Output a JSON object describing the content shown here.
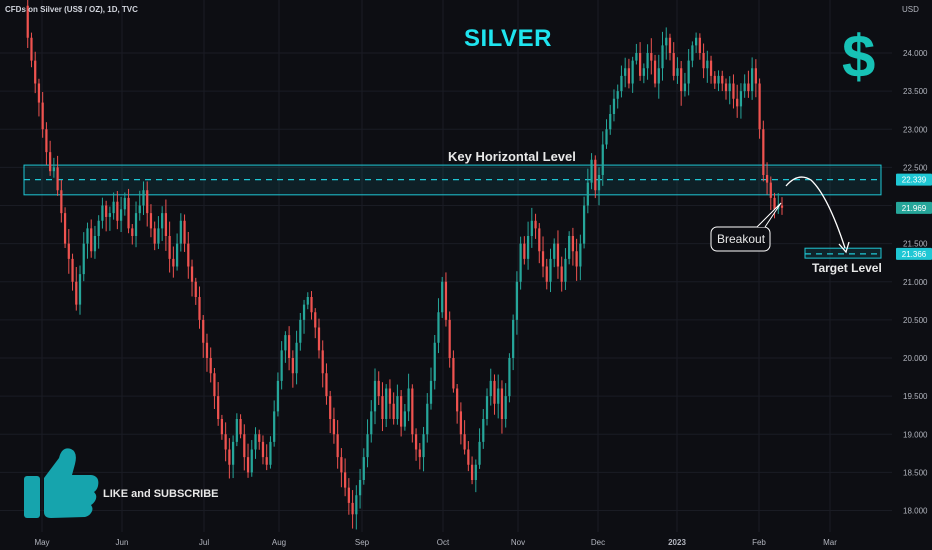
{
  "header": {
    "symbol_label": "CFDs on Silver (US$ / OZ), 1D, TVC"
  },
  "chart_data": {
    "type": "candlestick",
    "title": "SILVER",
    "y_axis": {
      "unit": "USD",
      "ticks": [
        "24.000",
        "23.500",
        "23.000",
        "22.500",
        "22.000",
        "21.500",
        "21.000",
        "20.500",
        "20.000",
        "19.500",
        "19.000",
        "18.500",
        "18.000"
      ],
      "range": [
        17.9,
        24.65
      ]
    },
    "x_axis": {
      "ticks": [
        "May",
        "Jun",
        "Jul",
        "Aug",
        "Sep",
        "Oct",
        "Nov",
        "Dec",
        "2023",
        "Feb",
        "Mar"
      ]
    },
    "closes": [
      24.62,
      24.2,
      23.9,
      23.6,
      23.35,
      23.0,
      22.7,
      22.45,
      22.5,
      22.2,
      21.9,
      21.5,
      21.3,
      21.0,
      20.7,
      21.1,
      21.5,
      21.7,
      21.4,
      21.6,
      21.8,
      22.0,
      21.85,
      21.9,
      22.05,
      21.8,
      21.95,
      22.1,
      21.7,
      21.6,
      21.9,
      22.0,
      22.2,
      21.9,
      21.7,
      21.5,
      21.7,
      21.9,
      21.6,
      21.3,
      21.2,
      21.5,
      21.8,
      21.5,
      21.2,
      21.0,
      20.8,
      20.5,
      20.2,
      20.0,
      19.8,
      19.5,
      19.2,
      19.0,
      18.8,
      18.6,
      18.9,
      19.2,
      19.0,
      18.7,
      18.5,
      18.8,
      19.0,
      18.9,
      18.7,
      18.6,
      18.9,
      19.3,
      19.7,
      20.1,
      20.3,
      20.0,
      19.8,
      20.2,
      20.5,
      20.7,
      20.8,
      20.6,
      20.4,
      20.1,
      19.8,
      19.5,
      19.2,
      19.0,
      18.7,
      18.5,
      18.3,
      18.1,
      17.95,
      18.2,
      18.4,
      18.7,
      19.0,
      19.3,
      19.7,
      19.5,
      19.2,
      19.6,
      19.4,
      19.2,
      19.5,
      19.1,
      19.3,
      19.6,
      19.0,
      18.8,
      18.7,
      19.0,
      19.4,
      19.7,
      20.2,
      20.6,
      21.0,
      20.5,
      20.0,
      19.6,
      19.3,
      19.0,
      18.8,
      18.6,
      18.4,
      18.6,
      18.9,
      19.2,
      19.5,
      19.7,
      19.4,
      19.6,
      19.2,
      19.5,
      20.0,
      20.5,
      21.0,
      21.5,
      21.3,
      21.6,
      21.8,
      21.7,
      21.4,
      21.2,
      21.0,
      21.3,
      21.5,
      21.2,
      21.0,
      21.3,
      21.6,
      21.4,
      21.2,
      21.5,
      22.0,
      22.3,
      22.6,
      22.2,
      22.4,
      22.8,
      23.0,
      23.2,
      23.4,
      23.5,
      23.7,
      23.8,
      23.6,
      23.9,
      24.0,
      23.7,
      23.8,
      24.0,
      23.9,
      23.6,
      23.8,
      24.1,
      24.2,
      24.0,
      23.7,
      23.8,
      23.5,
      23.6,
      23.9,
      24.1,
      24.2,
      24.0,
      23.8,
      23.9,
      23.7,
      23.6,
      23.7,
      23.6,
      23.5,
      23.6,
      23.4,
      23.3,
      23.5,
      23.6,
      23.5,
      23.8,
      23.6,
      23.0,
      22.4,
      22.3,
      22.1,
      21.95,
      22.0,
      21.97
    ],
    "annotations": [
      {
        "text": "Key Horizontal Level",
        "type": "zone",
        "y_range": [
          22.14,
          22.53
        ],
        "level": 22.339
      },
      {
        "text": "Breakout",
        "type": "callout"
      },
      {
        "text": "Target Level",
        "type": "zone",
        "y_range": [
          21.31,
          21.44
        ],
        "level": 21.366
      }
    ],
    "price_labels": [
      {
        "text": "22.339",
        "value": 22.339,
        "color": "#1fc7d4"
      },
      {
        "text": "21.969",
        "value": 21.969,
        "color": "#26a69a"
      },
      {
        "text": "21.366",
        "value": 21.366,
        "color": "#1fc7d4"
      }
    ],
    "colors": {
      "up": "#26a69a",
      "down": "#ef5350",
      "accent": "#1fc7d4",
      "background": "#0d0e13"
    }
  },
  "branding": {
    "promo_text": "LIKE and SUBSCRIBE",
    "dollar_sign": "$",
    "icons": [
      "thumbs-up-icon",
      "dollar-icon"
    ]
  }
}
